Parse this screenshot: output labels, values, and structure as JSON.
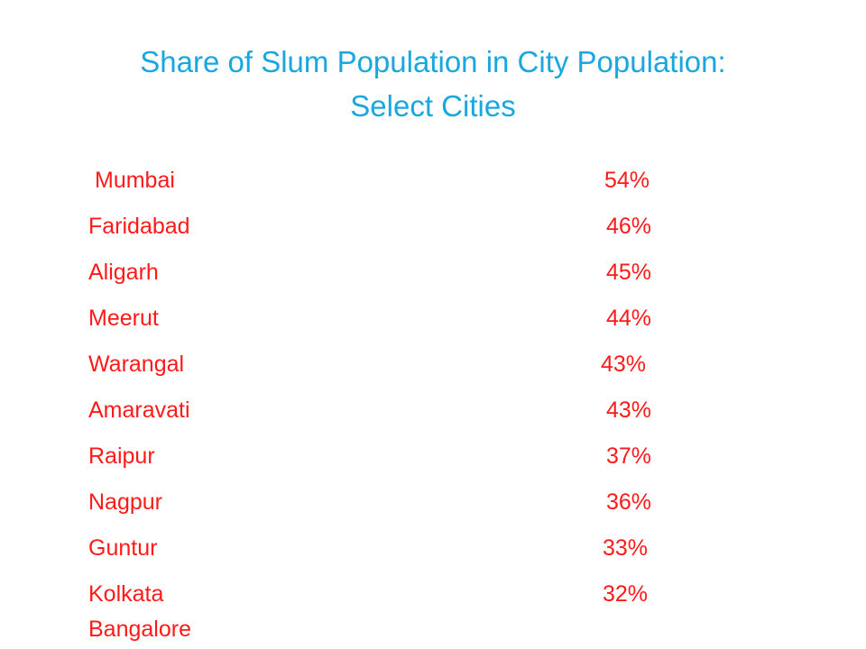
{
  "slide": {
    "title_line1": "Share of Slum Population in City Population:",
    "title_line2": "Select Cities",
    "colors": {
      "title": "#1aa7e0",
      "body": "#ff1a1a",
      "background": "#ffffff"
    },
    "rows": [
      {
        "city": "Mumbai",
        "share": "54%"
      },
      {
        "city": "Faridabad",
        "share": "46%"
      },
      {
        "city": "Aligarh",
        "share": "45%"
      },
      {
        "city": "Meerut",
        "share": "44%"
      },
      {
        "city": "Warangal",
        "share": "43%"
      },
      {
        "city": "Amaravati",
        "share": "43%"
      },
      {
        "city": "Raipur",
        "share": "37%"
      },
      {
        "city": "Nagpur",
        "share": "36%"
      },
      {
        "city": "Guntur",
        "share": "33%"
      },
      {
        "city": "Kolkata",
        "share": "32%"
      },
      {
        "city": "Bangalore",
        "share": ""
      }
    ]
  }
}
